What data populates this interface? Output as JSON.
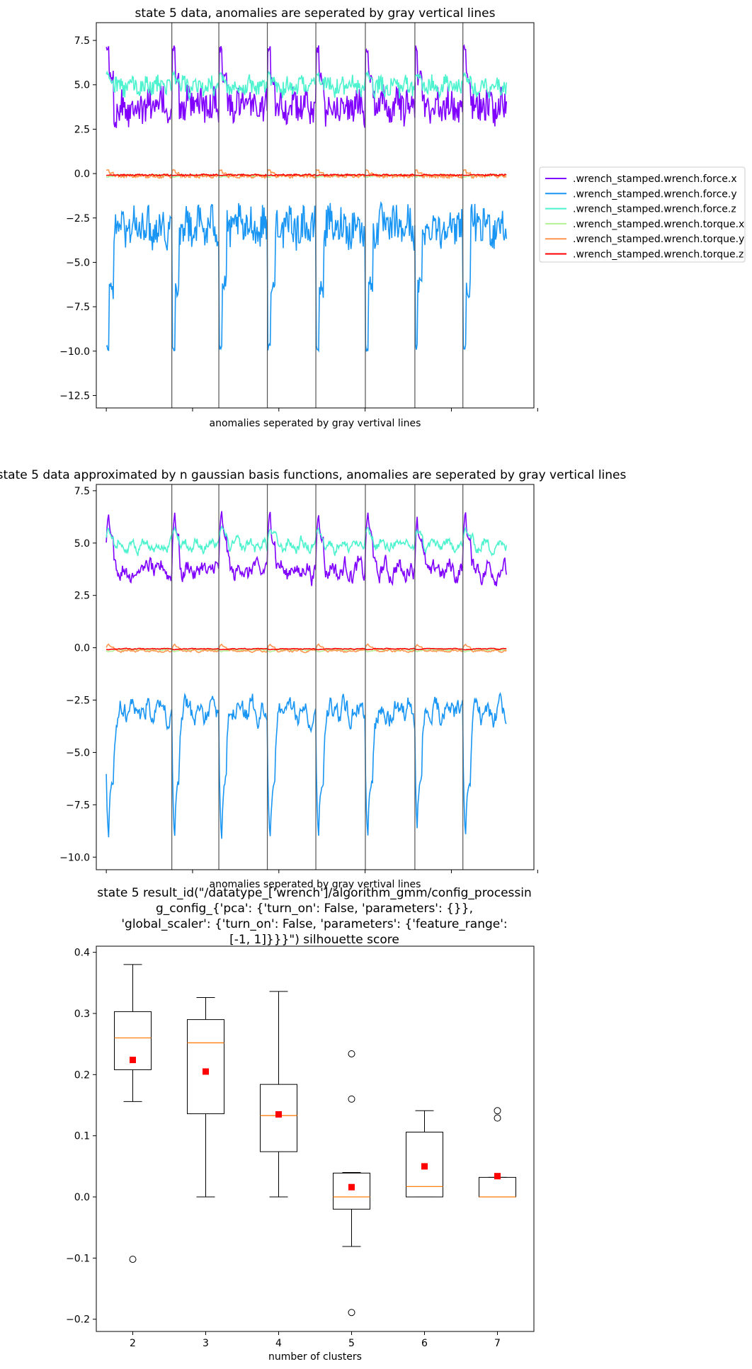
{
  "chart_data": [
    {
      "type": "line",
      "title": "state 5 data, anomalies are seperated by gray vertical lines",
      "xlabel": "anomalies seperated by gray vertival lines",
      "ylabel": "",
      "ylim": [
        -13.2,
        8.5
      ],
      "yticks": [
        7.5,
        5.0,
        2.5,
        0.0,
        -2.5,
        -5.0,
        -7.5,
        -10.0,
        -12.5
      ],
      "ytick_labels": [
        "7.5",
        "5.0",
        "2.5",
        "0.0",
        "−2.5",
        "−5.0",
        "−7.5",
        "−10.0",
        "−12.5"
      ],
      "xlim": [
        0,
        8.75
      ],
      "separators": [
        1.51,
        2.45,
        3.42,
        4.39,
        5.38,
        6.37,
        7.33
      ],
      "segment_count": 8,
      "series": [
        {
          "name": ".wrench_stamped.wrench.force.x",
          "color": "#8000ff",
          "base": 3.8,
          "amp": 0.9,
          "spike": 7.0
        },
        {
          "name": ".wrench_stamped.wrench.force.y",
          "color": "#1996f3",
          "base": -3.0,
          "amp": 1.0,
          "spike": -9.8
        },
        {
          "name": ".wrench_stamped.wrench.force.z",
          "color": "#4df3ce",
          "base": 4.9,
          "amp": 0.5,
          "spike": 5.6
        },
        {
          "name": ".wrench_stamped.wrench.torque.x",
          "color": "#b2f396",
          "base": -0.1,
          "amp": 0.05,
          "spike": -0.2
        },
        {
          "name": ".wrench_stamped.wrench.torque.y",
          "color": "#ff964f",
          "base": -0.15,
          "amp": 0.08,
          "spike": 0.2
        },
        {
          "name": ".wrench_stamped.wrench.torque.z",
          "color": "#ff0000",
          "base": -0.08,
          "amp": 0.04,
          "spike": -0.1
        }
      ],
      "legend": "right"
    },
    {
      "type": "line",
      "title": "state 5 data approximated by n gaussian basis functions, anomalies are seperated by gray vertical lines",
      "xlabel": "anomalies seperated by gray vertival lines",
      "ylabel": "",
      "ylim": [
        -10.6,
        7.8
      ],
      "yticks": [
        7.5,
        5.0,
        2.5,
        0.0,
        -2.5,
        -5.0,
        -7.5,
        -10.0
      ],
      "ytick_labels": [
        "7.5",
        "5.0",
        "2.5",
        "0.0",
        "−2.5",
        "−5.0",
        "−7.5",
        "−10.0"
      ],
      "xlim": [
        0,
        8.75
      ],
      "separators": [
        1.51,
        2.45,
        3.42,
        4.39,
        5.38,
        6.37,
        7.33
      ],
      "segment_count": 8,
      "series": [
        {
          "name": ".wrench_stamped.wrench.force.x",
          "color": "#8000ff",
          "base": 3.7,
          "amp": 0.8,
          "spike": 6.7
        },
        {
          "name": ".wrench_stamped.wrench.force.y",
          "color": "#1996f3",
          "base": -3.0,
          "amp": 0.9,
          "spike": -9.6
        },
        {
          "name": ".wrench_stamped.wrench.force.z",
          "color": "#4df3ce",
          "base": 4.9,
          "amp": 0.5,
          "spike": 5.8
        },
        {
          "name": ".wrench_stamped.wrench.torque.x",
          "color": "#b2f396",
          "base": -0.1,
          "amp": 0.05,
          "spike": -0.2
        },
        {
          "name": ".wrench_stamped.wrench.torque.y",
          "color": "#ff964f",
          "base": -0.15,
          "amp": 0.08,
          "spike": 0.2
        },
        {
          "name": ".wrench_stamped.wrench.torque.z",
          "color": "#ff0000",
          "base": -0.05,
          "amp": 0.03,
          "spike": -0.1
        }
      ]
    },
    {
      "type": "box",
      "title_lines": [
        "state 5 result_id(\"/datatype_['wrench']/algorithm_gmm/config_processin",
        "g_config_{'pca': {'turn_on': False, 'parameters': {}},",
        "'global_scaler': {'turn_on': False, 'parameters': {'feature_range':",
        "[-1, 1]}}}\") silhouette score"
      ],
      "xlabel": "number of clusters",
      "ylabel": "",
      "ylim": [
        -0.22,
        0.41
      ],
      "yticks": [
        0.4,
        0.3,
        0.2,
        0.1,
        0.0,
        -0.1,
        -0.2
      ],
      "ytick_labels": [
        "0.4",
        "0.3",
        "0.2",
        "0.1",
        "0.0",
        "−0.1",
        "−0.2"
      ],
      "categories": [
        "2",
        "3",
        "4",
        "5",
        "6",
        "7"
      ],
      "boxes": [
        {
          "whislo": 0.156,
          "q1": 0.208,
          "med": 0.26,
          "q3": 0.303,
          "whishi": 0.38,
          "mean": 0.224,
          "fliers": [
            -0.102
          ]
        },
        {
          "whislo": 0.0,
          "q1": 0.136,
          "med": 0.252,
          "q3": 0.29,
          "whishi": 0.326,
          "mean": 0.205,
          "fliers": []
        },
        {
          "whislo": 0.0,
          "q1": 0.074,
          "med": 0.133,
          "q3": 0.184,
          "whishi": 0.336,
          "mean": 0.135,
          "fliers": []
        },
        {
          "whislo": -0.081,
          "q1": -0.02,
          "med": 0.0,
          "q3": 0.039,
          "whishi": 0.04,
          "mean": 0.016,
          "fliers": [
            0.234,
            0.16,
            -0.189
          ]
        },
        {
          "whislo": 0.0,
          "q1": 0.0,
          "med": 0.017,
          "q3": 0.106,
          "whishi": 0.141,
          "mean": 0.05,
          "fliers": []
        },
        {
          "whislo": 0.0,
          "q1": 0.0,
          "med": 0.0,
          "q3": 0.032,
          "whishi": 0.032,
          "mean": 0.034,
          "fliers": [
            0.141,
            0.129
          ]
        }
      ],
      "colors": {
        "box": "#000000",
        "median": "#ff7f0e",
        "mean": "#ff0000"
      }
    }
  ]
}
